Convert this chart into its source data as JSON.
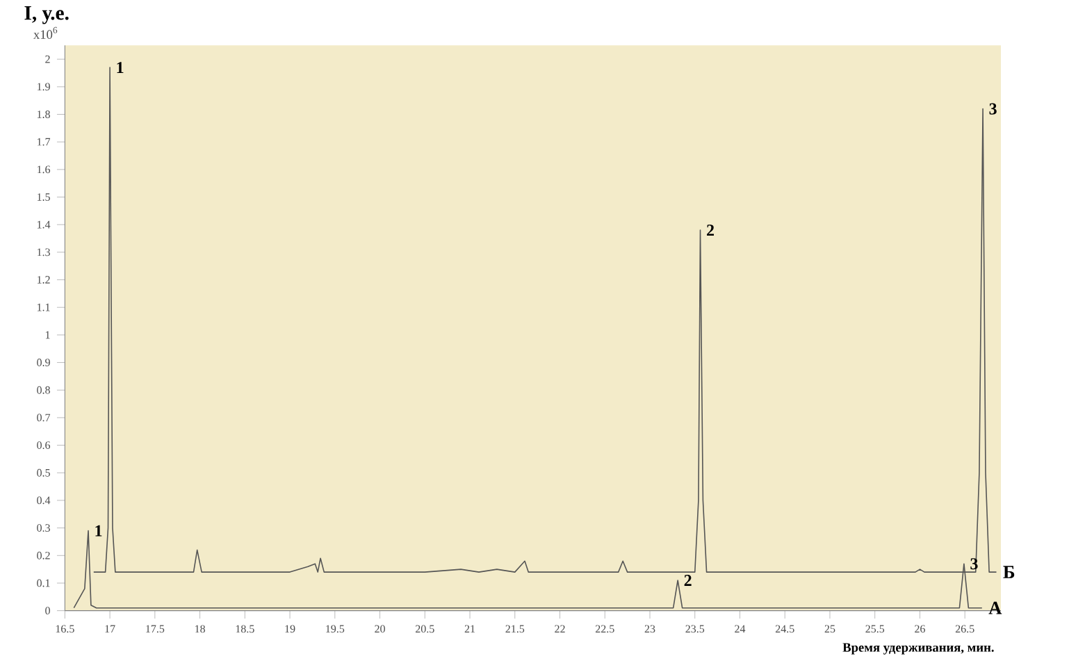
{
  "chart_data": {
    "type": "line",
    "xlabel": "Время удерживания, мин.",
    "ylabel": "I, у.е.",
    "xlim": [
      16.5,
      26.9
    ],
    "ylim": [
      0,
      2.05
    ],
    "xticks": [
      16.5,
      17,
      17.5,
      18,
      18.5,
      19,
      19.5,
      20,
      20.5,
      21,
      21.5,
      22,
      22.5,
      23,
      23.5,
      24,
      24.5,
      25,
      25.5,
      26,
      26.5
    ],
    "yticks": [
      0,
      0.1,
      0.2,
      0.3,
      0.4,
      0.5,
      0.6,
      0.7,
      0.8,
      0.9,
      1,
      1.1,
      1.2,
      1.3,
      1.4,
      1.5,
      1.6,
      1.7,
      1.8,
      1.9,
      2
    ],
    "grid": false,
    "legend": false,
    "marker": "none",
    "line_style": "solid",
    "series": [
      {
        "name": "А",
        "color": "#555555",
        "x": [
          16.6,
          16.72,
          16.76,
          16.79,
          16.85,
          23.26,
          23.31,
          23.36,
          26.44,
          26.49,
          26.54,
          26.69
        ],
        "values": [
          0.01,
          0.08,
          0.29,
          0.02,
          0.01,
          0.01,
          0.11,
          0.01,
          0.01,
          0.17,
          0.01,
          0.01
        ]
      },
      {
        "name": "Б",
        "color": "#555555",
        "x": [
          16.82,
          16.95,
          16.98,
          17.0,
          17.03,
          17.06,
          17.6,
          17.93,
          17.97,
          18.02,
          19.0,
          19.2,
          19.28,
          19.31,
          19.34,
          19.38,
          20.5,
          20.9,
          21.1,
          21.3,
          21.5,
          21.61,
          21.65,
          22.65,
          22.7,
          22.75,
          23.5,
          23.54,
          23.56,
          23.59,
          23.63,
          25.95,
          26.0,
          26.05,
          26.62,
          26.66,
          26.7,
          26.73,
          26.77,
          26.85
        ],
        "values": [
          0.14,
          0.14,
          0.3,
          1.97,
          0.3,
          0.14,
          0.14,
          0.14,
          0.22,
          0.14,
          0.14,
          0.16,
          0.17,
          0.14,
          0.19,
          0.14,
          0.14,
          0.15,
          0.14,
          0.15,
          0.14,
          0.18,
          0.14,
          0.14,
          0.18,
          0.14,
          0.14,
          0.4,
          1.38,
          0.4,
          0.14,
          0.14,
          0.15,
          0.14,
          0.14,
          0.5,
          1.82,
          0.5,
          0.14,
          0.14
        ]
      }
    ],
    "annotations": [
      "x10$^{6}$",
      {
        "text": "1",
        "x": 16.76,
        "y": 0.29
      },
      {
        "text": "1",
        "x": 17.0,
        "y": 1.97
      },
      {
        "text": "2",
        "x": 23.56,
        "y": 1.38
      },
      {
        "text": "3",
        "x": 26.7,
        "y": 1.82
      },
      {
        "text": "2",
        "x": 23.31,
        "y": 0.11
      },
      {
        "text": "3",
        "x": 26.49,
        "y": 0.17
      }
    ]
  }
}
